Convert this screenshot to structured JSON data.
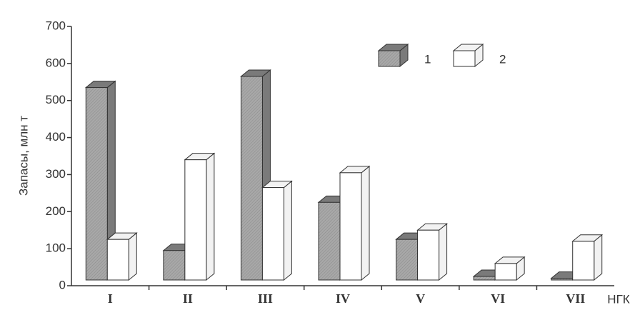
{
  "chart_data": {
    "type": "bar3d",
    "y_label": "Запасы, млн т",
    "x_label": "НГК",
    "categories": [
      "I",
      "II",
      "III",
      "IV",
      "V",
      "VI",
      "VII"
    ],
    "series": [
      {
        "name": "1",
        "color": "#a8a8a8",
        "values": [
          535,
          95,
          565,
          225,
          125,
          25,
          20
        ]
      },
      {
        "name": "2",
        "color": "#ffffff",
        "values": [
          125,
          340,
          265,
          305,
          150,
          60,
          120
        ]
      }
    ],
    "ylim": [
      0,
      700
    ],
    "yticks": [
      0,
      100,
      200,
      300,
      400,
      500,
      600,
      700
    ]
  }
}
